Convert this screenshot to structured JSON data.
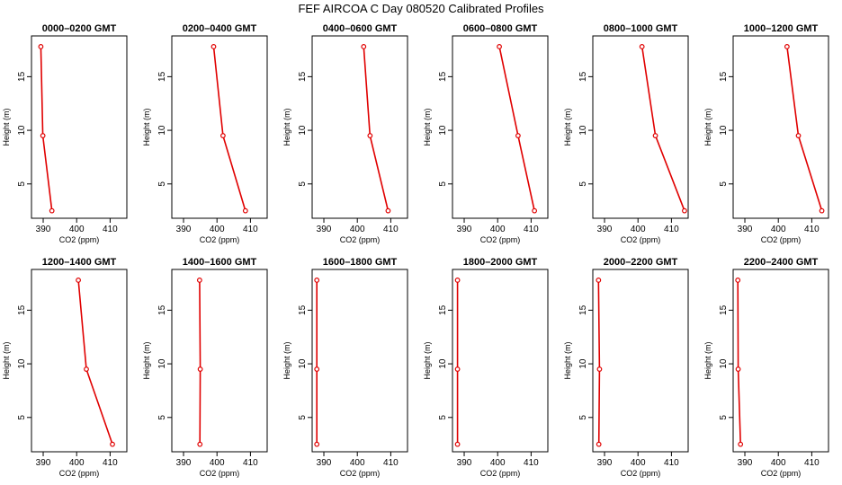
{
  "figure": {
    "title": "FEF AIRCOA C  Day 080520  Calibrated Profiles"
  },
  "colors": {
    "profile": "#e00000",
    "axis": "#000000",
    "background": "#ffffff"
  },
  "chart_data": [
    {
      "type": "line",
      "title": "0000–0200 GMT",
      "xlabel": "CO2 (ppm)",
      "ylabel": "Height (m)",
      "xlim": [
        386.5,
        415
      ],
      "ylim": [
        1.8,
        18.8
      ],
      "xticks": [
        390,
        400,
        410
      ],
      "yticks": [
        5,
        10,
        15
      ],
      "series": [
        {
          "x": [
            392.6,
            389.9,
            389.3
          ],
          "y": [
            2.5,
            9.5,
            17.8
          ]
        }
      ]
    },
    {
      "type": "line",
      "title": "0200–0400 GMT",
      "xlabel": "CO2 (ppm)",
      "ylabel": "Height (m)",
      "xlim": [
        386.5,
        415
      ],
      "ylim": [
        1.8,
        18.8
      ],
      "xticks": [
        390,
        400,
        410
      ],
      "yticks": [
        5,
        10,
        15
      ],
      "series": [
        {
          "x": [
            408.5,
            401.8,
            399.0
          ],
          "y": [
            2.5,
            9.5,
            17.8
          ]
        }
      ]
    },
    {
      "type": "line",
      "title": "0400–0600 GMT",
      "xlabel": "CO2 (ppm)",
      "ylabel": "Height (m)",
      "xlim": [
        386.5,
        415
      ],
      "ylim": [
        1.8,
        18.8
      ],
      "xticks": [
        390,
        400,
        410
      ],
      "yticks": [
        5,
        10,
        15
      ],
      "series": [
        {
          "x": [
            409.2,
            403.8,
            401.9
          ],
          "y": [
            2.5,
            9.5,
            17.8
          ]
        }
      ]
    },
    {
      "type": "line",
      "title": "0600–0800 GMT",
      "xlabel": "CO2 (ppm)",
      "ylabel": "Height (m)",
      "xlim": [
        386.5,
        415
      ],
      "ylim": [
        1.8,
        18.8
      ],
      "xticks": [
        390,
        400,
        410
      ],
      "yticks": [
        5,
        10,
        15
      ],
      "series": [
        {
          "x": [
            411.0,
            406.1,
            400.5
          ],
          "y": [
            2.5,
            9.5,
            17.8
          ]
        }
      ]
    },
    {
      "type": "line",
      "title": "0800–1000 GMT",
      "xlabel": "CO2 (ppm)",
      "ylabel": "Height (m)",
      "xlim": [
        386.5,
        415
      ],
      "ylim": [
        1.8,
        18.8
      ],
      "xticks": [
        390,
        400,
        410
      ],
      "yticks": [
        5,
        10,
        15
      ],
      "series": [
        {
          "x": [
            413.9,
            405.2,
            401.2
          ],
          "y": [
            2.5,
            9.5,
            17.8
          ]
        }
      ]
    },
    {
      "type": "line",
      "title": "1000–1200 GMT",
      "xlabel": "CO2 (ppm)",
      "ylabel": "Height (m)",
      "xlim": [
        386.5,
        415
      ],
      "ylim": [
        1.8,
        18.8
      ],
      "xticks": [
        390,
        400,
        410
      ],
      "yticks": [
        5,
        10,
        15
      ],
      "series": [
        {
          "x": [
            413.0,
            406.0,
            402.6
          ],
          "y": [
            2.5,
            9.5,
            17.8
          ]
        }
      ]
    },
    {
      "type": "line",
      "title": "1200–1400 GMT",
      "xlabel": "CO2 (ppm)",
      "ylabel": "Height (m)",
      "xlim": [
        386.5,
        415
      ],
      "ylim": [
        1.8,
        18.8
      ],
      "xticks": [
        390,
        400,
        410
      ],
      "yticks": [
        5,
        10,
        15
      ],
      "series": [
        {
          "x": [
            410.7,
            402.9,
            400.5
          ],
          "y": [
            2.5,
            9.5,
            17.8
          ]
        }
      ]
    },
    {
      "type": "line",
      "title": "1400–1600 GMT",
      "xlabel": "CO2 (ppm)",
      "ylabel": "Height (m)",
      "xlim": [
        386.5,
        415
      ],
      "ylim": [
        1.8,
        18.8
      ],
      "xticks": [
        390,
        400,
        410
      ],
      "yticks": [
        5,
        10,
        15
      ],
      "series": [
        {
          "x": [
            394.9,
            395.0,
            394.8
          ],
          "y": [
            2.5,
            9.5,
            17.8
          ]
        }
      ]
    },
    {
      "type": "line",
      "title": "1600–1800 GMT",
      "xlabel": "CO2 (ppm)",
      "ylabel": "Height (m)",
      "xlim": [
        386.5,
        415
      ],
      "ylim": [
        1.8,
        18.8
      ],
      "xticks": [
        390,
        400,
        410
      ],
      "yticks": [
        5,
        10,
        15
      ],
      "series": [
        {
          "x": [
            387.9,
            387.9,
            387.9
          ],
          "y": [
            2.5,
            9.5,
            17.8
          ]
        }
      ]
    },
    {
      "type": "line",
      "title": "1800–2000 GMT",
      "xlabel": "CO2 (ppm)",
      "ylabel": "Height (m)",
      "xlim": [
        386.5,
        415
      ],
      "ylim": [
        1.8,
        18.8
      ],
      "xticks": [
        390,
        400,
        410
      ],
      "yticks": [
        5,
        10,
        15
      ],
      "series": [
        {
          "x": [
            388.0,
            388.0,
            388.0
          ],
          "y": [
            2.5,
            9.5,
            17.8
          ]
        }
      ]
    },
    {
      "type": "line",
      "title": "2000–2200 GMT",
      "xlabel": "CO2 (ppm)",
      "ylabel": "Height (m)",
      "xlim": [
        386.5,
        415
      ],
      "ylim": [
        1.8,
        18.8
      ],
      "xticks": [
        390,
        400,
        410
      ],
      "yticks": [
        5,
        10,
        15
      ],
      "series": [
        {
          "x": [
            388.3,
            388.5,
            388.2
          ],
          "y": [
            2.5,
            9.5,
            17.8
          ]
        }
      ]
    },
    {
      "type": "line",
      "title": "2200–2400 GMT",
      "xlabel": "CO2 (ppm)",
      "ylabel": "Height (m)",
      "xlim": [
        386.5,
        415
      ],
      "ylim": [
        1.8,
        18.8
      ],
      "xticks": [
        390,
        400,
        410
      ],
      "yticks": [
        5,
        10,
        15
      ],
      "series": [
        {
          "x": [
            388.7,
            388.0,
            387.9
          ],
          "y": [
            2.5,
            9.5,
            17.8
          ]
        }
      ]
    }
  ]
}
